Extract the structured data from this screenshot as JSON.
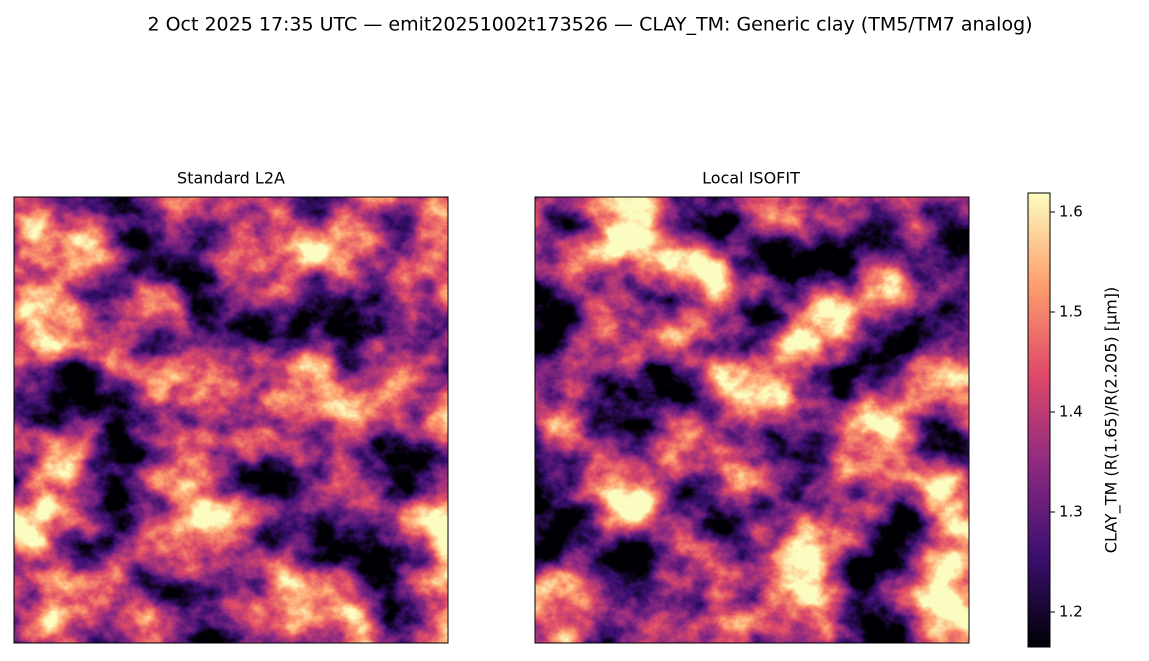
{
  "chart_data": {
    "type": "image",
    "title": "2 Oct 2025 17:35 UTC — emit20251002t173526 — CLAY_TM: Generic clay (TM5/TM7 analog)",
    "panels": [
      {
        "title": "Standard L2A"
      },
      {
        "title": "Local ISOFIT"
      }
    ],
    "colorbar": {
      "label": "CLAY_TM  (R(1.65)/R(2.205)  [μm])",
      "lim": [
        1.165,
        1.619
      ],
      "ticks": [
        1.2,
        1.3,
        1.4,
        1.5,
        1.6
      ],
      "colors": [
        "#000004",
        "#3b0f70",
        "#8c2981",
        "#de4968",
        "#fe9f6d",
        "#fcfdbf"
      ]
    }
  }
}
